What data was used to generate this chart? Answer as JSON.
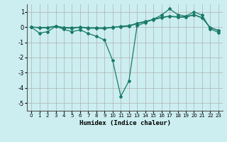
{
  "xlabel": "Humidex (Indice chaleur)",
  "ylabel": "",
  "background_color": "#cceef0",
  "grid_color": "#b0b0b0",
  "line_color": "#1a7a6a",
  "x": [
    0,
    1,
    2,
    3,
    4,
    5,
    6,
    7,
    8,
    9,
    10,
    11,
    12,
    13,
    14,
    15,
    16,
    17,
    18,
    19,
    20,
    21,
    22,
    23
  ],
  "line1": [
    0.0,
    -0.4,
    -0.3,
    0.05,
    -0.15,
    -0.3,
    -0.18,
    -0.42,
    -0.6,
    -0.85,
    -2.2,
    -4.55,
    -3.55,
    0.08,
    0.3,
    0.52,
    0.78,
    1.2,
    0.82,
    0.72,
    1.0,
    0.78,
    -0.12,
    -0.35
  ],
  "line2": [
    0.0,
    -0.05,
    -0.05,
    0.05,
    -0.05,
    -0.08,
    -0.02,
    -0.08,
    -0.08,
    -0.1,
    -0.02,
    0.05,
    0.1,
    0.25,
    0.38,
    0.5,
    0.65,
    0.72,
    0.68,
    0.68,
    0.82,
    0.62,
    -0.04,
    -0.22
  ],
  "line3": [
    0.0,
    -0.02,
    -0.02,
    0.06,
    -0.02,
    -0.04,
    0.0,
    -0.04,
    -0.04,
    -0.06,
    -0.01,
    0.02,
    0.06,
    0.22,
    0.35,
    0.48,
    0.62,
    0.7,
    0.65,
    0.65,
    0.8,
    0.6,
    -0.03,
    -0.22
  ],
  "ylim": [
    -5.5,
    1.5
  ],
  "yticks": [
    -5,
    -4,
    -3,
    -2,
    -1,
    0,
    1
  ],
  "xticks": [
    0,
    1,
    2,
    3,
    4,
    5,
    6,
    7,
    8,
    9,
    10,
    11,
    12,
    13,
    14,
    15,
    16,
    17,
    18,
    19,
    20,
    21,
    22,
    23
  ],
  "marker": "D",
  "markersize": 2,
  "linewidth": 0.9
}
